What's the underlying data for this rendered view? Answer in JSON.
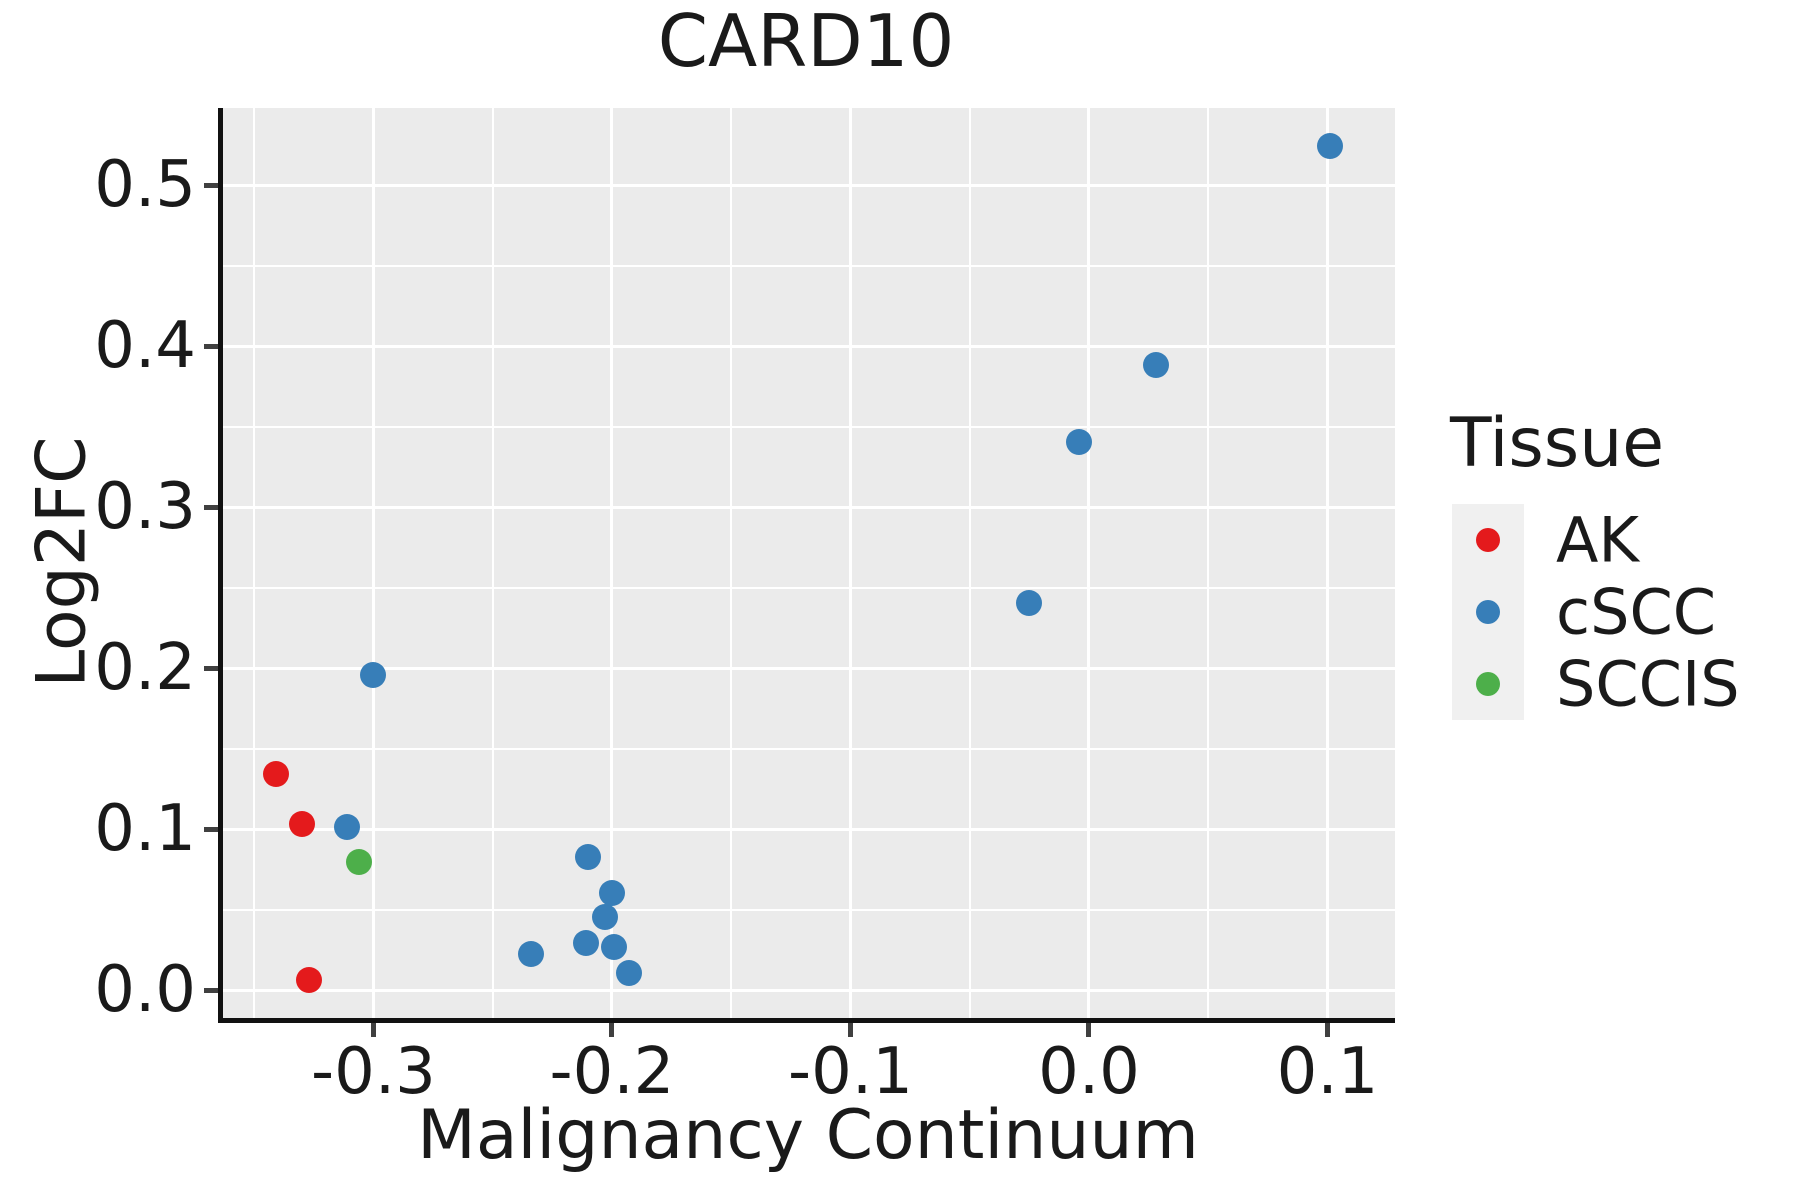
{
  "title": "CARD10",
  "x_axis": {
    "label": "Malignancy Continuum",
    "tick_labels": [
      "-0.3",
      "-0.2",
      "-0.1",
      "0.0",
      "0.1"
    ]
  },
  "y_axis": {
    "label": "Log2FC",
    "tick_labels": [
      "0.0",
      "0.1",
      "0.2",
      "0.3",
      "0.4",
      "0.5"
    ]
  },
  "legend": {
    "title": "Tissue",
    "items": [
      {
        "label": "AK",
        "color": "#E41A1C"
      },
      {
        "label": "cSCC",
        "color": "#377EB8"
      },
      {
        "label": "SCCIS",
        "color": "#4DAF4A"
      }
    ]
  },
  "colors": {
    "panel_bg": "#EBEBEB",
    "grid": "#FFFFFF",
    "spine": "#111111",
    "tick": "#404040",
    "text": "#1A1A1A",
    "legend_key_bg": "#F0F0F0"
  },
  "chart_data": {
    "type": "scatter",
    "title": "CARD10",
    "xlabel": "Malignancy Continuum",
    "ylabel": "Log2FC",
    "xlim": [
      -0.3635,
      0.1283
    ],
    "ylim": [
      -0.0168,
      0.5484
    ],
    "x_ticks": [
      -0.3,
      -0.2,
      -0.1,
      0.0,
      0.1
    ],
    "y_ticks": [
      0.0,
      0.1,
      0.2,
      0.3,
      0.4,
      0.5
    ],
    "x_minor_ticks": [
      -0.35,
      -0.25,
      -0.15,
      -0.05,
      0.05
    ],
    "y_minor_ticks": [
      0.05,
      0.15,
      0.25,
      0.35,
      0.45
    ],
    "grid": true,
    "legend_position": "right",
    "series": [
      {
        "name": "AK",
        "color": "#E41A1C",
        "points": [
          [
            -0.341,
            0.135
          ],
          [
            -0.33,
            0.104
          ],
          [
            -0.327,
            0.007
          ]
        ]
      },
      {
        "name": "cSCC",
        "color": "#377EB8",
        "points": [
          [
            -0.3,
            0.196
          ],
          [
            -0.311,
            0.102
          ],
          [
            -0.234,
            0.023
          ],
          [
            -0.21,
            0.083
          ],
          [
            -0.203,
            0.046
          ],
          [
            -0.211,
            0.03
          ],
          [
            -0.2,
            0.061
          ],
          [
            -0.199,
            0.027
          ],
          [
            -0.193,
            0.011
          ],
          [
            -0.025,
            0.241
          ],
          [
            -0.004,
            0.341
          ],
          [
            0.028,
            0.389
          ],
          [
            0.101,
            0.525
          ]
        ]
      },
      {
        "name": "SCCIS",
        "color": "#4DAF4A",
        "points": [
          [
            -0.306,
            0.08
          ]
        ]
      }
    ]
  }
}
